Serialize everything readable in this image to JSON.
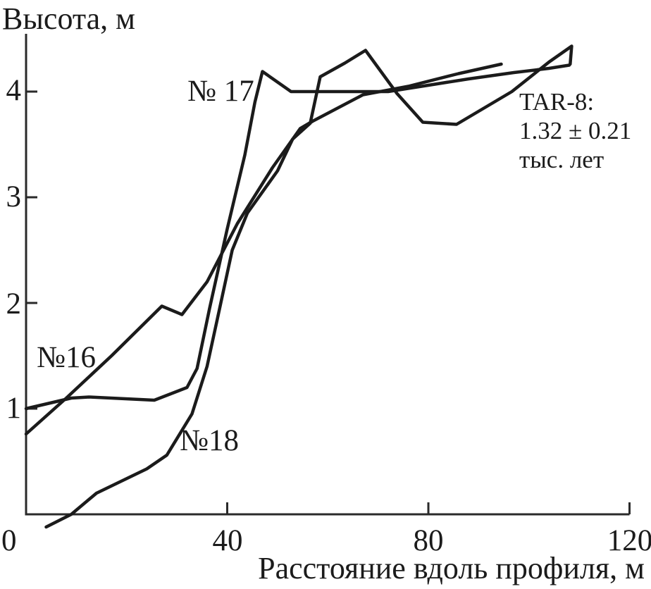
{
  "colors": {
    "line": "#1b1b1b",
    "axis": "#2a2a2a",
    "background": "#ffffff"
  },
  "annotation": {
    "lines": [
      "TAR-8:",
      "1.32 ± 0.21",
      "тыс. лет"
    ]
  },
  "chart_data": {
    "type": "line",
    "title": "",
    "ylabel": "Высота, м",
    "xlabel": "Расстояние вдоль профиля, м",
    "xlim": [
      0,
      120
    ],
    "ylim": [
      0,
      4.55
    ],
    "x_ticks": [
      0,
      40,
      80,
      120
    ],
    "y_ticks": [
      1,
      2,
      3,
      4
    ],
    "grid": false,
    "legend_position": "inline-labels",
    "annotation_text": "TAR-8: 1.32 ± 0.21 тыс. лет",
    "series": [
      {
        "name": "№16",
        "points": [
          [
            0,
            0.76
          ],
          [
            8,
            1.1
          ],
          [
            17,
            1.5
          ],
          [
            27,
            1.97
          ],
          [
            31,
            1.89
          ],
          [
            36,
            2.2
          ],
          [
            42,
            2.75
          ],
          [
            49,
            3.28
          ],
          [
            54.5,
            3.65
          ],
          [
            57,
            3.72
          ],
          [
            67,
            3.97
          ],
          [
            76,
            4.05
          ],
          [
            86,
            4.17
          ],
          [
            94.5,
            4.26
          ]
        ]
      },
      {
        "name": "№ 17",
        "points": [
          [
            0,
            1.0
          ],
          [
            9,
            1.1
          ],
          [
            12.5,
            1.11
          ],
          [
            25.5,
            1.08
          ],
          [
            32,
            1.2
          ],
          [
            34,
            1.38
          ],
          [
            36.5,
            1.95
          ],
          [
            40,
            2.7
          ],
          [
            43.5,
            3.4
          ],
          [
            45.5,
            3.9
          ],
          [
            47,
            4.19
          ],
          [
            52.7,
            4.0
          ],
          [
            72,
            4.0
          ],
          [
            80,
            4.06
          ],
          [
            88,
            4.12
          ],
          [
            97,
            4.18
          ],
          [
            104,
            4.22
          ],
          [
            108,
            4.25
          ]
        ]
      },
      {
        "name": "№18",
        "points": [
          [
            4,
            -0.12
          ],
          [
            9,
            0.0
          ],
          [
            14,
            0.2
          ],
          [
            24,
            0.43
          ],
          [
            28,
            0.56
          ],
          [
            33,
            0.95
          ],
          [
            36,
            1.4
          ],
          [
            38.5,
            1.95
          ],
          [
            41,
            2.5
          ],
          [
            44,
            2.85
          ],
          [
            50,
            3.25
          ],
          [
            53,
            3.55
          ],
          [
            56.5,
            3.7
          ],
          [
            58.5,
            4.14
          ],
          [
            63.4,
            4.27
          ],
          [
            67.5,
            4.39
          ],
          [
            73.8,
            3.98
          ],
          [
            78.9,
            3.71
          ],
          [
            85.6,
            3.69
          ],
          [
            96.6,
            4.0
          ],
          [
            104,
            4.28
          ],
          [
            108.5,
            4.43
          ],
          [
            108.2,
            4.26
          ]
        ]
      }
    ]
  }
}
